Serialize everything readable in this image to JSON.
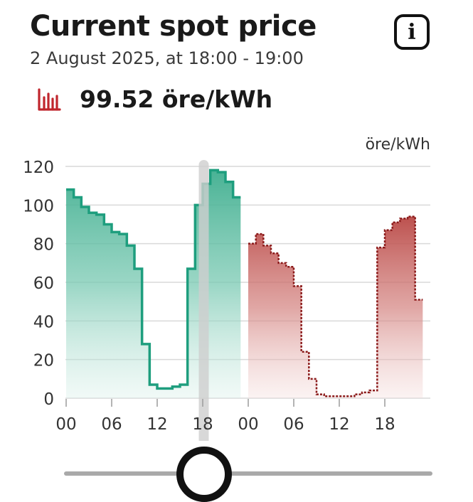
{
  "header": {
    "title": "Current spot price",
    "subtitle": "2 August 2025, at 18:00 - 19:00"
  },
  "current_price": {
    "value_text": "99.52 öre/kWh",
    "icon": "bar-chart-icon",
    "color": "#c0262d"
  },
  "info_button": {
    "icon": "info-icon",
    "glyph": "i"
  },
  "slider": {
    "position_fraction": 0.38
  },
  "colors": {
    "past_line": "#1e9e7e",
    "past_fill": "#5ec0a4",
    "future_line": "#8b1a1a",
    "future_fill": "#c25a56",
    "grid": "#d9d9d9",
    "marker": "#cfcfcf"
  },
  "chart_data": {
    "type": "area",
    "unit_label": "öre/kWh",
    "ylim": [
      0,
      120
    ],
    "yticks": [
      0,
      20,
      40,
      60,
      80,
      100,
      120
    ],
    "xtick_labels": [
      "00",
      "06",
      "12",
      "18",
      "00",
      "06",
      "12",
      "18"
    ],
    "xtick_hours": [
      0,
      6,
      12,
      18,
      24,
      30,
      36,
      42
    ],
    "hours_total": 48,
    "current_hour": 18,
    "grid": true,
    "series": [
      {
        "values": [
          108,
          104,
          99,
          96,
          95,
          90,
          86,
          85,
          79,
          67,
          28,
          7,
          5,
          5,
          6,
          7,
          67,
          100,
          111,
          118,
          117,
          112,
          104
        ]
      },
      {
        "values": [
          80,
          85,
          79,
          75,
          70,
          68,
          58,
          24,
          10,
          2,
          1,
          1,
          1,
          1,
          2,
          3,
          4,
          78,
          87,
          91,
          93,
          94,
          51
        ],
        "start_hour": 24
      }
    ]
  }
}
